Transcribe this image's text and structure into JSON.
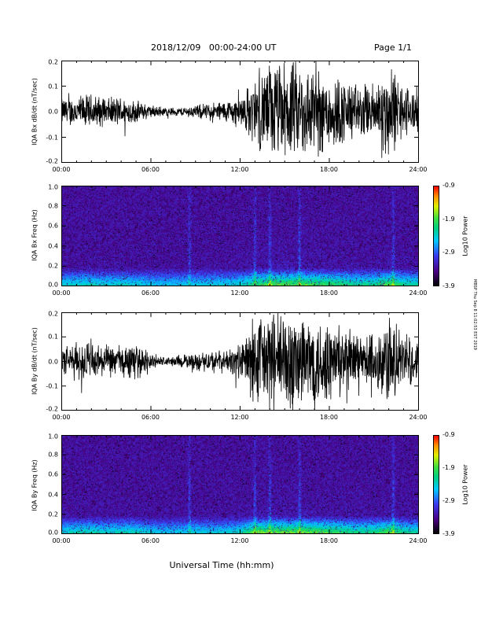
{
  "header": {
    "title": "2018/12/09   00:00-24:00 UT",
    "page": "Page 1/1"
  },
  "side_note": "MBSP Thu Sep 8 11:02:53 EST 2019",
  "x_axis_label": "Universal Time (hh:mm)",
  "chart_data": [
    {
      "type": "line",
      "ylabel": "IQA Bx dB/dt (nT/sec)",
      "xlim": [
        "00:00",
        "24:00"
      ],
      "xticks": [
        "00:00",
        "06:00",
        "12:00",
        "18:00",
        "24:00"
      ],
      "ylim": [
        -0.2,
        0.2
      ],
      "yticks": [
        "-0.2",
        "-0.1",
        "0.0",
        "0.1",
        "0.2"
      ],
      "envelope_hours": [
        0,
        1,
        2,
        3,
        4,
        5,
        6,
        7,
        8,
        9,
        10,
        11,
        12,
        13,
        14,
        15,
        16,
        17,
        18,
        19,
        20,
        21,
        22,
        23,
        24
      ],
      "envelope_amplitude": [
        0.06,
        0.07,
        0.08,
        0.06,
        0.07,
        0.05,
        0.03,
        0.02,
        0.02,
        0.03,
        0.04,
        0.05,
        0.07,
        0.15,
        0.22,
        0.22,
        0.22,
        0.2,
        0.18,
        0.15,
        0.12,
        0.13,
        0.22,
        0.12,
        0.1
      ]
    },
    {
      "type": "heatmap",
      "ylabel": "IQA Bx Freq (Hz)",
      "xlim": [
        "00:00",
        "24:00"
      ],
      "xticks": [
        "00:00",
        "06:00",
        "12:00",
        "18:00",
        "24:00"
      ],
      "ylim": [
        0.0,
        1.0
      ],
      "yticks": [
        "0.0",
        "0.2",
        "0.4",
        "0.6",
        "0.8",
        "1.0"
      ],
      "colorbar": {
        "title": "Log10 Power",
        "ticks": [
          "-0.9",
          "-1.9",
          "-2.9",
          "-3.9"
        ],
        "range": [
          -3.9,
          -0.9
        ]
      }
    },
    {
      "type": "line",
      "ylabel": "IQA By dB/dt (nT/sec)",
      "xlim": [
        "00:00",
        "24:00"
      ],
      "xticks": [
        "00:00",
        "06:00",
        "12:00",
        "18:00",
        "24:00"
      ],
      "ylim": [
        -0.2,
        0.2
      ],
      "yticks": [
        "-0.2",
        "-0.1",
        "0.0",
        "0.1",
        "0.2"
      ],
      "envelope_hours": [
        0,
        1,
        2,
        3,
        4,
        5,
        6,
        7,
        8,
        9,
        10,
        11,
        12,
        13,
        14,
        15,
        16,
        17,
        18,
        19,
        20,
        21,
        22,
        23,
        24
      ],
      "envelope_amplitude": [
        0.06,
        0.09,
        0.1,
        0.07,
        0.08,
        0.08,
        0.04,
        0.02,
        0.03,
        0.04,
        0.05,
        0.05,
        0.08,
        0.22,
        0.24,
        0.24,
        0.24,
        0.22,
        0.2,
        0.16,
        0.13,
        0.14,
        0.22,
        0.12,
        0.1
      ]
    },
    {
      "type": "heatmap",
      "ylabel": "IQA By Freq (Hz)",
      "xlim": [
        "00:00",
        "24:00"
      ],
      "xticks": [
        "00:00",
        "06:00",
        "12:00",
        "18:00",
        "24:00"
      ],
      "ylim": [
        0.0,
        1.0
      ],
      "yticks": [
        "0.0",
        "0.2",
        "0.4",
        "0.6",
        "0.8",
        "1.0"
      ],
      "colorbar": {
        "title": "Log10 Power",
        "ticks": [
          "-0.9",
          "-1.9",
          "-2.9",
          "-3.9"
        ],
        "range": [
          -3.9,
          -0.9
        ]
      }
    }
  ]
}
